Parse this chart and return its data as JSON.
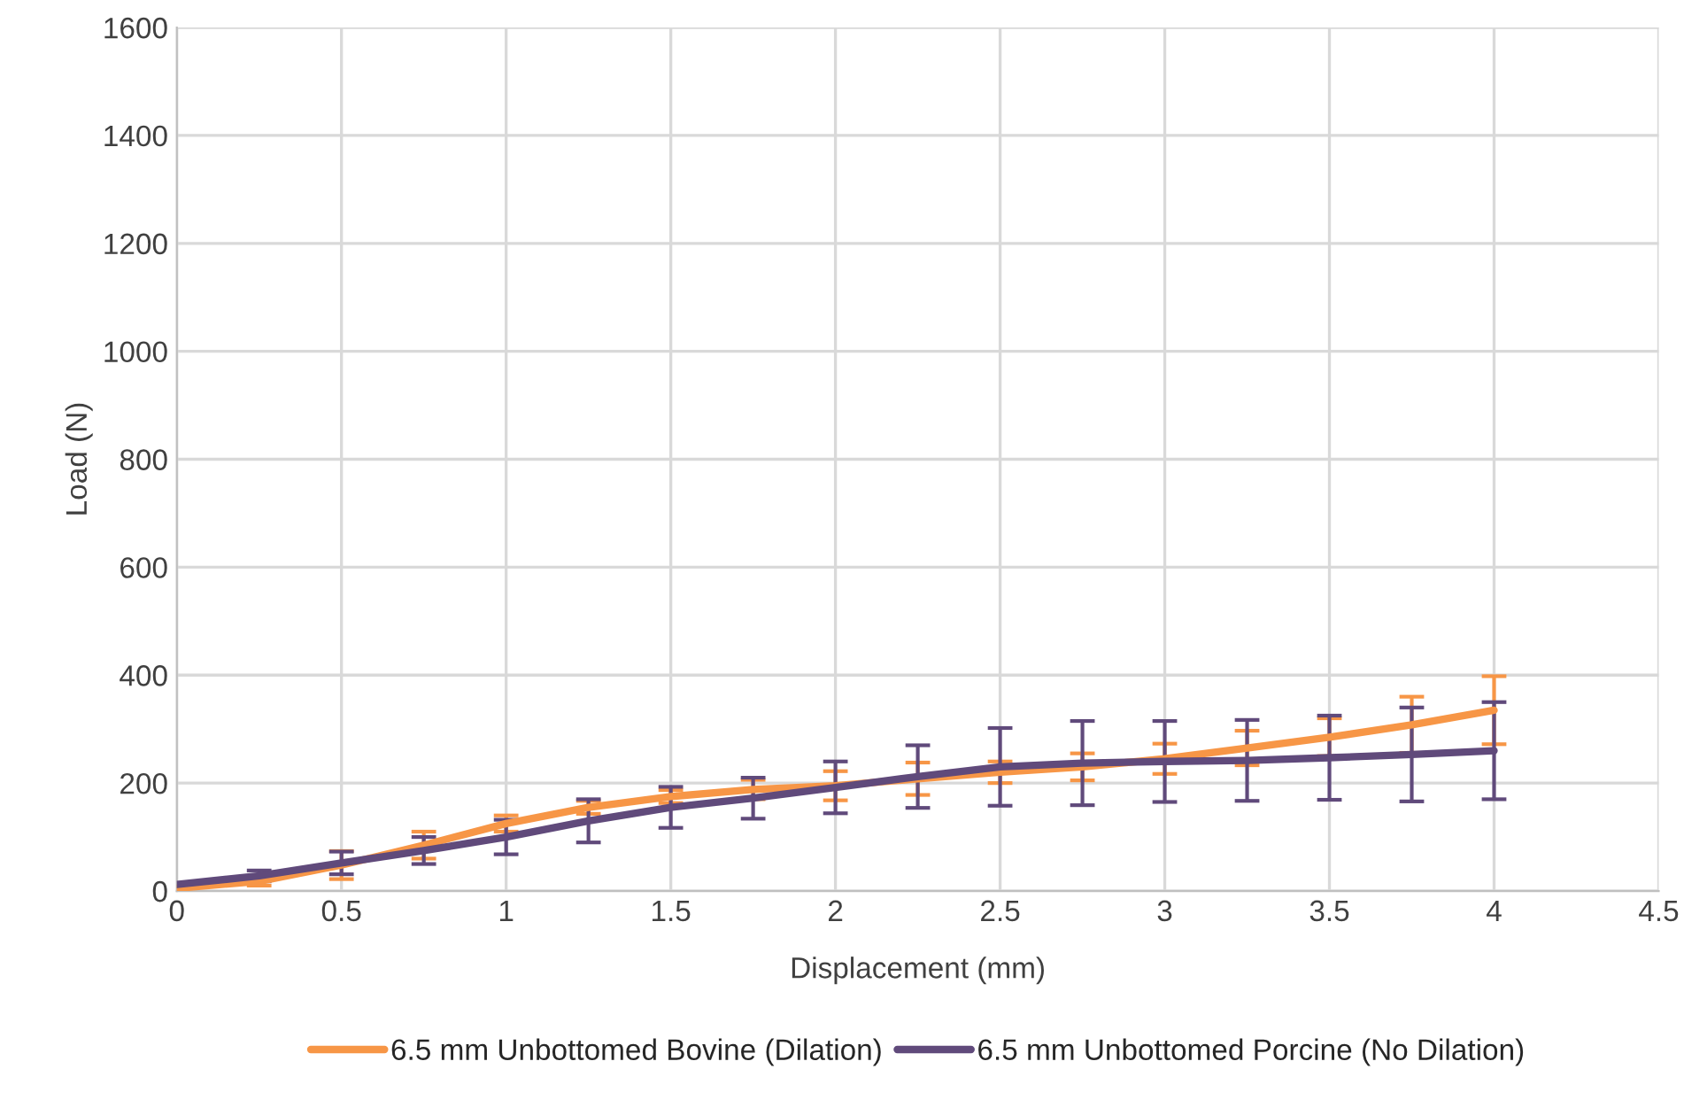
{
  "chart_data": {
    "type": "line",
    "xlabel": "Displacement (mm)",
    "ylabel": "Load (N)",
    "x": [
      0,
      0.25,
      0.5,
      0.75,
      1,
      1.25,
      1.5,
      1.75,
      2,
      2.25,
      2.5,
      2.75,
      3,
      3.25,
      3.5,
      3.75,
      4
    ],
    "series": [
      {
        "name": "6.5 mm Unbottomed Bovine (Dilation)",
        "color": "#f79646",
        "values": [
          5,
          18,
          48,
          85,
          125,
          155,
          175,
          188,
          195,
          208,
          220,
          230,
          245,
          265,
          285,
          308,
          335
        ],
        "errors": [
          null,
          8,
          26,
          25,
          15,
          12,
          12,
          18,
          27,
          30,
          20,
          25,
          28,
          32,
          35,
          52,
          63
        ]
      },
      {
        "name": "6.5 mm Unbottomed Porcine (No Dilation)",
        "color": "#604a7b",
        "values": [
          12,
          28,
          52,
          75,
          100,
          130,
          155,
          172,
          192,
          212,
          230,
          237,
          240,
          242,
          247,
          253,
          260
        ],
        "errors": [
          null,
          10,
          21,
          25,
          32,
          40,
          38,
          38,
          48,
          58,
          72,
          78,
          75,
          75,
          78,
          87,
          90
        ]
      }
    ],
    "xlim": [
      0,
      4.5
    ],
    "xticks": [
      0,
      0.5,
      1,
      1.5,
      2,
      2.5,
      3,
      3.5,
      4,
      4.5
    ],
    "ylim": [
      0,
      1600
    ],
    "yticks": [
      0,
      200,
      400,
      600,
      800,
      1000,
      1200,
      1400,
      1600
    ],
    "grid": true,
    "legend": "bottom",
    "marker": "none",
    "line_style": "solid"
  }
}
